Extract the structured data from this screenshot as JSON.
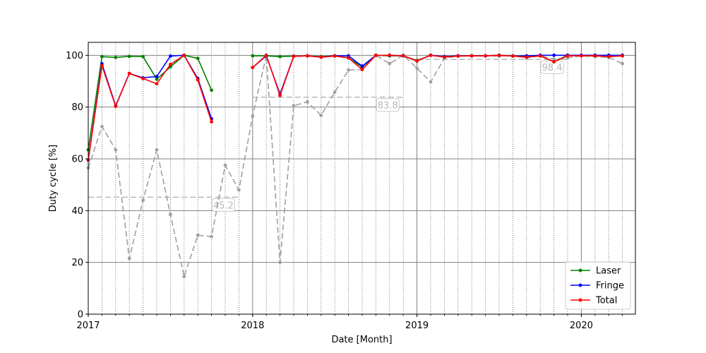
{
  "chart_data": {
    "type": "line",
    "xlabel": "Date [Month]",
    "ylabel": "Duty cycle [%]",
    "xlim": [
      "2017-01",
      "2020-04"
    ],
    "ylim": [
      0,
      105
    ],
    "x_ticks": [
      {
        "date": "2017-01",
        "label": "2017"
      },
      {
        "date": "2018-01",
        "label": "2018"
      },
      {
        "date": "2019-01",
        "label": "2019"
      },
      {
        "date": "2020-01",
        "label": "2020"
      }
    ],
    "y_ticks": [
      0,
      20,
      40,
      60,
      80,
      100
    ],
    "grid": true,
    "legend_position": "bottom-right",
    "x": [
      "2017-01",
      "2017-02",
      "2017-03",
      "2017-04",
      "2017-05",
      "2017-06",
      "2017-07",
      "2017-08",
      "2017-09",
      "2017-10",
      "2017-11",
      "2017-12",
      "2018-01",
      "2018-02",
      "2018-03",
      "2018-04",
      "2018-05",
      "2018-06",
      "2018-07",
      "2018-08",
      "2018-09",
      "2018-10",
      "2018-11",
      "2018-12",
      "2019-01",
      "2019-02",
      "2019-03",
      "2019-04",
      "2019-05",
      "2019-06",
      "2019-07",
      "2019-08",
      "2019-09",
      "2019-10",
      "2019-11",
      "2019-12",
      "2020-01",
      "2020-02",
      "2020-03",
      "2020-04"
    ],
    "series": [
      {
        "name": "Laser",
        "color": "#008000",
        "values": [
          63.5,
          99.5,
          99.2,
          99.6,
          99.5,
          90.8,
          95.5,
          100.0,
          98.8,
          86.5,
          null,
          null,
          99.8,
          99.8,
          99.5,
          99.7,
          99.8,
          99.5,
          99.8,
          99.0,
          95.5,
          100.0,
          99.8,
          99.8,
          98.0,
          100.0,
          99.5,
          99.7,
          99.8,
          99.8,
          100.0,
          99.8,
          99.5,
          99.8,
          97.5,
          100.0,
          99.8,
          99.8,
          99.5,
          99.8
        ]
      },
      {
        "name": "Fringe",
        "color": "#0000ff",
        "values": [
          59.5,
          96.7,
          80.5,
          93.0,
          91.3,
          91.8,
          99.7,
          100.0,
          91.0,
          75.5,
          null,
          null,
          95.3,
          99.8,
          85.0,
          99.6,
          99.8,
          99.3,
          99.8,
          99.8,
          95.8,
          100.0,
          100.0,
          99.8,
          97.8,
          100.0,
          99.5,
          99.8,
          99.8,
          99.8,
          100.0,
          99.7,
          99.8,
          100.0,
          100.0,
          100.0,
          100.0,
          100.0,
          100.0,
          100.0
        ]
      },
      {
        "name": "Total",
        "color": "#ff0000",
        "values": [
          59.5,
          96.0,
          80.3,
          93.0,
          91.0,
          89.0,
          96.5,
          100.0,
          90.5,
          74.3,
          null,
          null,
          95.3,
          100.0,
          84.5,
          99.6,
          99.8,
          99.3,
          99.7,
          99.0,
          94.5,
          100.0,
          100.0,
          99.8,
          97.8,
          100.0,
          99.3,
          99.7,
          99.8,
          99.8,
          100.0,
          99.7,
          99.3,
          99.8,
          97.5,
          99.8,
          99.8,
          99.8,
          99.5,
          99.8
        ]
      },
      {
        "name": "",
        "color": "#a0a0a0",
        "values": [
          56.5,
          72.5,
          63.5,
          21.5,
          44.0,
          63.5,
          38.5,
          14.5,
          30.5,
          30.0,
          57.5,
          48.0,
          76.5,
          100.0,
          20.0,
          80.5,
          82.0,
          76.8,
          85.8,
          94.3,
          94.5,
          100.0,
          96.8,
          100.0,
          95.0,
          89.7,
          98.8,
          99.8,
          99.8,
          99.8,
          99.7,
          99.8,
          99.0,
          99.8,
          98.5,
          99.0,
          99.8,
          99.5,
          99.2,
          96.8
        ]
      }
    ],
    "averages": [
      {
        "label": "45.2",
        "value": 45.2,
        "from": "2017-01",
        "to": "2017-12"
      },
      {
        "label": "83.8",
        "value": 83.8,
        "from": "2018-01",
        "to": "2018-12"
      },
      {
        "label": "98.4",
        "value": 98.4,
        "from": "2019-01",
        "to": "2019-12"
      }
    ]
  }
}
